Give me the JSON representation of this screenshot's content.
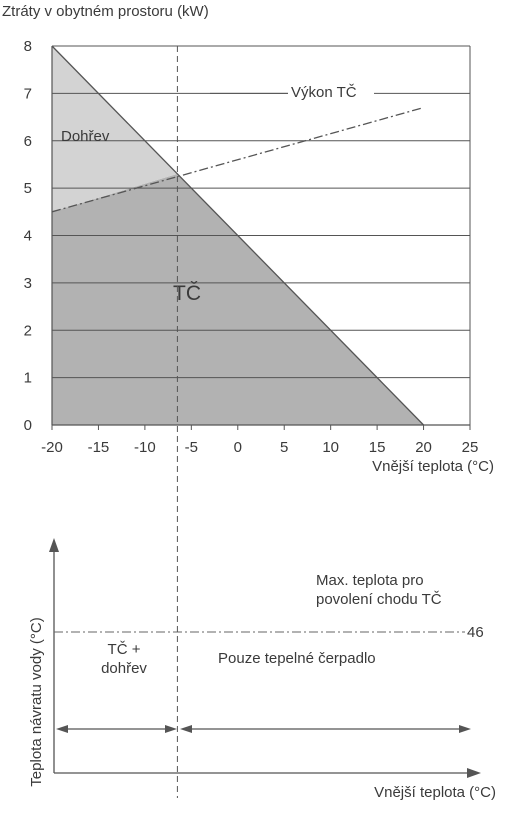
{
  "chart_data": [
    {
      "type": "area",
      "title": "Ztráty v obytném prostoru (kW)",
      "xlabel": "Vnější teplota (°C)",
      "ylabel": "",
      "xlim": [
        -20,
        25
      ],
      "ylim": [
        0,
        8
      ],
      "x_ticks": [
        -20,
        -15,
        -10,
        -5,
        0,
        5,
        10,
        15,
        20,
        25
      ],
      "y_ticks": [
        0,
        1,
        2,
        3,
        4,
        5,
        6,
        7,
        8
      ],
      "grid": "horizontal",
      "series": [
        {
          "name": "Výkon TČ",
          "style": "dash-dot",
          "x": [
            -20,
            20
          ],
          "y": [
            4.5,
            6.7
          ]
        },
        {
          "name": "",
          "style": "solid",
          "x": [
            -20,
            20
          ],
          "y": [
            8,
            0
          ]
        }
      ],
      "balance_point": {
        "x": -6.5,
        "y": 5.3
      },
      "regions": [
        {
          "label": "Dohřev",
          "color": "#d3d3d3"
        },
        {
          "label": "TČ",
          "color": "#b2b2b2"
        }
      ]
    },
    {
      "type": "diagram",
      "xlabel": "Vnější teplota (°C)",
      "ylabel": "Teplota návratu vody (°C)",
      "limit_value": "46",
      "limit_label_line1": "Max. teplota pro",
      "limit_label_line2": "povolení chodu TČ",
      "zone_left_line1": "TČ +",
      "zone_left_line2": "dohřev",
      "zone_right": "Pouze tepelné čerpadlo"
    }
  ]
}
